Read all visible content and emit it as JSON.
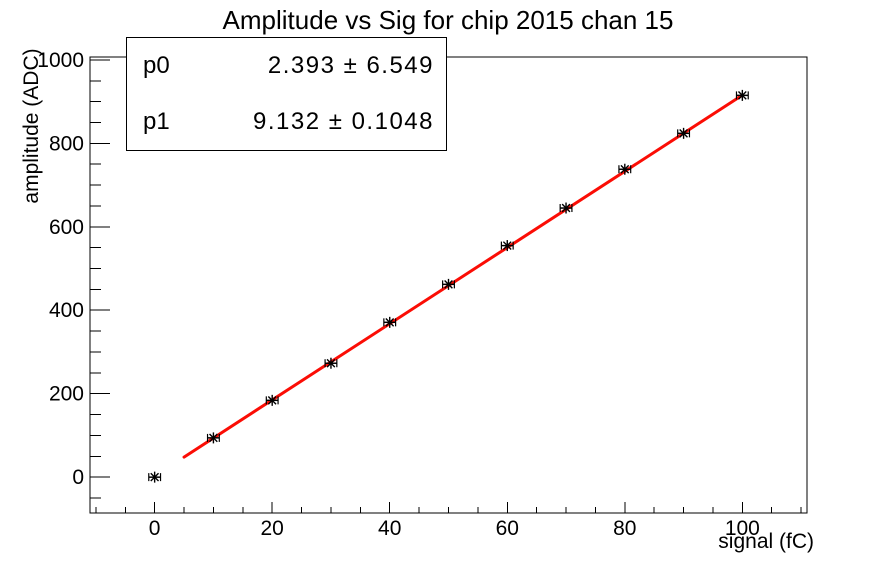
{
  "window": {
    "background": "#ffffff",
    "foreground": "#000000"
  },
  "stats_box": {
    "rows": [
      {
        "name": "p0",
        "value": "2.393 ± 6.549"
      },
      {
        "name": "p1",
        "value": "9.132 ± 0.1048"
      }
    ]
  },
  "chart_data": {
    "type": "scatter",
    "title": "Amplitude vs Sig for chip 2015 chan 15",
    "xlabel": "signal (fC)",
    "ylabel": "amplitude (ADC)",
    "x": [
      0,
      10,
      20,
      30,
      40,
      50,
      60,
      70,
      80,
      90,
      100
    ],
    "y": [
      0,
      94,
      184,
      273,
      371,
      462,
      555,
      645,
      738,
      824,
      915
    ],
    "xerr": 1,
    "xlim": [
      -11,
      111
    ],
    "ylim": [
      -86,
      1007
    ],
    "x_major_ticks": [
      0,
      20,
      40,
      60,
      80,
      100
    ],
    "x_minor_step": 5,
    "y_major_ticks": [
      0,
      200,
      400,
      600,
      800,
      1000
    ],
    "y_minor_step": 50,
    "grid": false,
    "marker": "asterisk",
    "marker_color": "#000000",
    "fit": {
      "name": "linear",
      "p0": 2.393,
      "p1": 9.132,
      "range": [
        5,
        100
      ],
      "color": "#fb0d05",
      "width": 3
    }
  }
}
